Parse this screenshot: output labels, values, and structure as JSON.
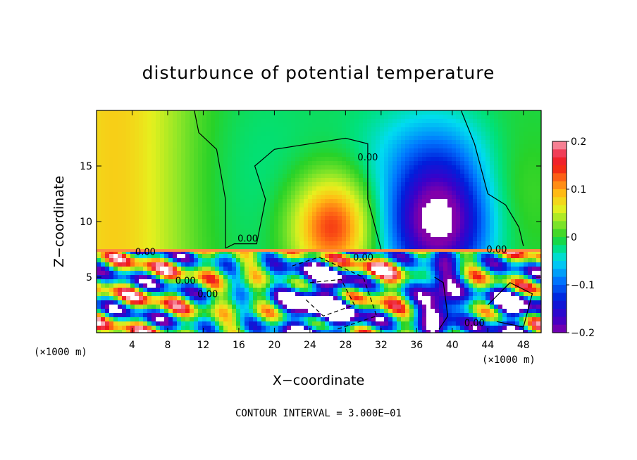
{
  "chart_data": {
    "type": "heatmap",
    "title": "disturbunce of potential temperature",
    "xlabel": "X−coordinate",
    "ylabel": "Z−coordinate",
    "x_unit_left": "(×1000 m)",
    "x_unit_right": "(×1000 m)",
    "xlim": [
      0,
      50
    ],
    "ylim": [
      0,
      20
    ],
    "x_ticks": [
      4,
      8,
      12,
      16,
      20,
      24,
      28,
      32,
      36,
      40,
      44,
      48
    ],
    "x_ticklabels": [
      "4",
      "8",
      "12",
      "16",
      "20",
      "24",
      "28",
      "32",
      "36",
      "40",
      "44",
      "48"
    ],
    "y_ticks": [
      5,
      10,
      15
    ],
    "y_ticklabels": [
      "5",
      "10",
      "15"
    ],
    "footer": "CONTOUR INTERVAL = 3.000E−01",
    "colorbar": {
      "min": -0.2,
      "max": 0.2,
      "tick_values": [
        0.2,
        0.1,
        0,
        -0.1,
        -0.2
      ],
      "tick_labels": [
        "0.2",
        "0.1",
        "0",
        "−0.1",
        "−0.2"
      ]
    },
    "contour_labels": [
      {
        "text": "0.00",
        "x": 17.0,
        "z": 8.2
      },
      {
        "text": "0.00",
        "x": 30.5,
        "z": 15.5
      },
      {
        "text": "0.00",
        "x": 5.5,
        "z": 7.0
      },
      {
        "text": "0.00",
        "x": 10.0,
        "z": 4.4
      },
      {
        "text": "0.00",
        "x": 12.5,
        "z": 3.2
      },
      {
        "text": "0.00",
        "x": 30.0,
        "z": 6.5
      },
      {
        "text": "0.00",
        "x": 45.0,
        "z": 7.2
      },
      {
        "text": "0.00",
        "x": 42.5,
        "z": 0.6
      }
    ],
    "features": [
      {
        "name": "upper warm anomaly",
        "x": 26.5,
        "z": 9.5,
        "value": 0.16
      },
      {
        "name": "upper cold anomaly",
        "x": 39.0,
        "z": 10.0,
        "value": -0.2
      },
      {
        "name": "left warm region",
        "x": 6.5,
        "z": 10.5,
        "value": 0.09
      }
    ]
  }
}
